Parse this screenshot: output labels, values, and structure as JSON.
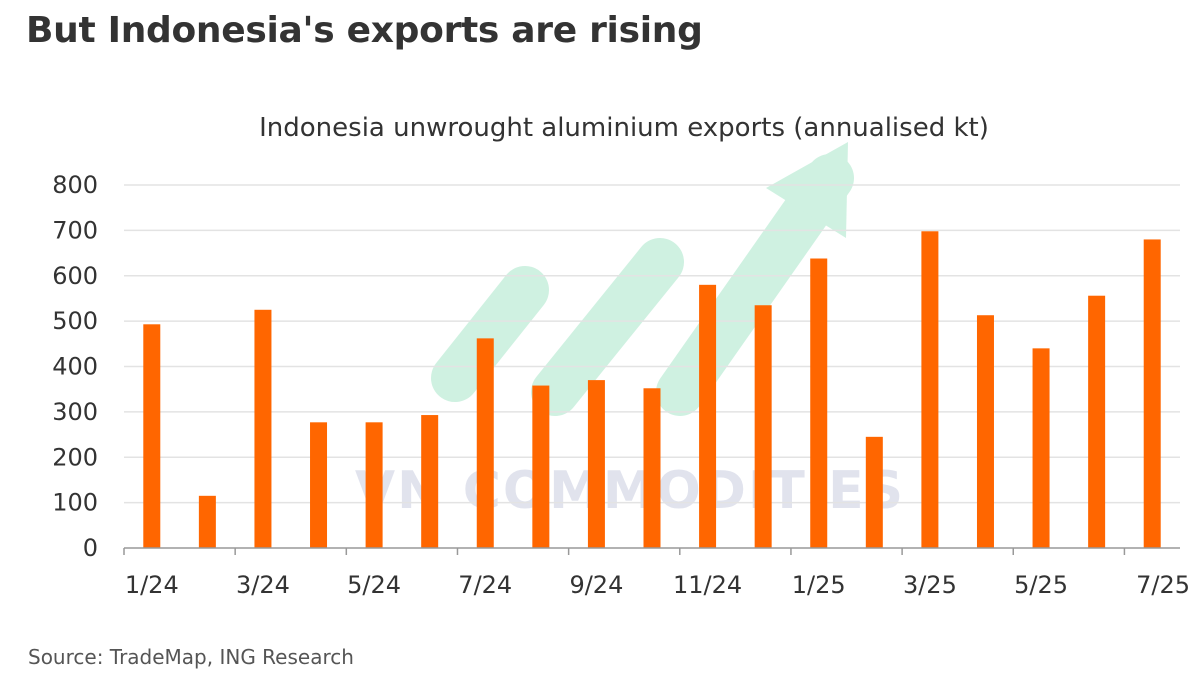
{
  "headline": "But Indonesia's exports are rising",
  "source": "Source: TradeMap, ING Research",
  "watermark": "VN COMMODITIES",
  "colors": {
    "bar": "#FF6600",
    "grid": "#E3E3E3",
    "axis": "#999999",
    "text": "#333333",
    "watermark_arrow": "#A8E6C9"
  },
  "chart_data": {
    "type": "bar",
    "title": "Indonesia unwrought aluminium exports (annualised kt)",
    "xlabel": "",
    "ylabel": "",
    "ylim": [
      0,
      800
    ],
    "yticks": [
      0,
      100,
      200,
      300,
      400,
      500,
      600,
      700,
      800
    ],
    "grid": true,
    "categories": [
      "1/24",
      "2/24",
      "3/24",
      "4/24",
      "5/24",
      "6/24",
      "7/24",
      "8/24",
      "9/24",
      "10/24",
      "11/24",
      "12/24",
      "1/25",
      "2/25",
      "3/25",
      "4/25",
      "5/25",
      "6/25",
      "7/25"
    ],
    "values": [
      493,
      115,
      525,
      277,
      277,
      293,
      462,
      358,
      370,
      352,
      580,
      535,
      638,
      245,
      698,
      513,
      440,
      556,
      680
    ],
    "xtick_labels": [
      "1/24",
      "3/24",
      "5/24",
      "7/24",
      "9/24",
      "11/24",
      "1/25",
      "3/25",
      "5/25",
      "7/25"
    ]
  }
}
